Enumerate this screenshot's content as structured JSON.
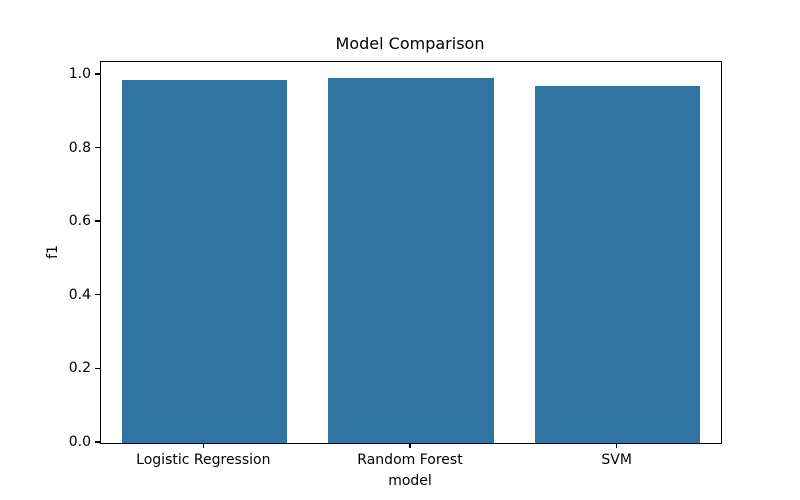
{
  "chart_data": {
    "type": "bar",
    "title": "Model Comparison",
    "xlabel": "model",
    "ylabel": "f1",
    "categories": [
      "Logistic Regression",
      "Random Forest",
      "SVM"
    ],
    "values": [
      0.987,
      0.991,
      0.97
    ],
    "ylim": [
      0,
      1.035
    ],
    "yticks": [
      0.0,
      0.2,
      0.4,
      0.6,
      0.8,
      1.0
    ],
    "ytick_labels": [
      "0.0",
      "0.2",
      "0.4",
      "0.6",
      "0.8",
      "1.0"
    ],
    "bar_color": "#3274a1",
    "bar_width_fraction": 0.8,
    "grid": false,
    "legend": "none",
    "background_color": "#ffffff",
    "spine_color": "#000000"
  }
}
